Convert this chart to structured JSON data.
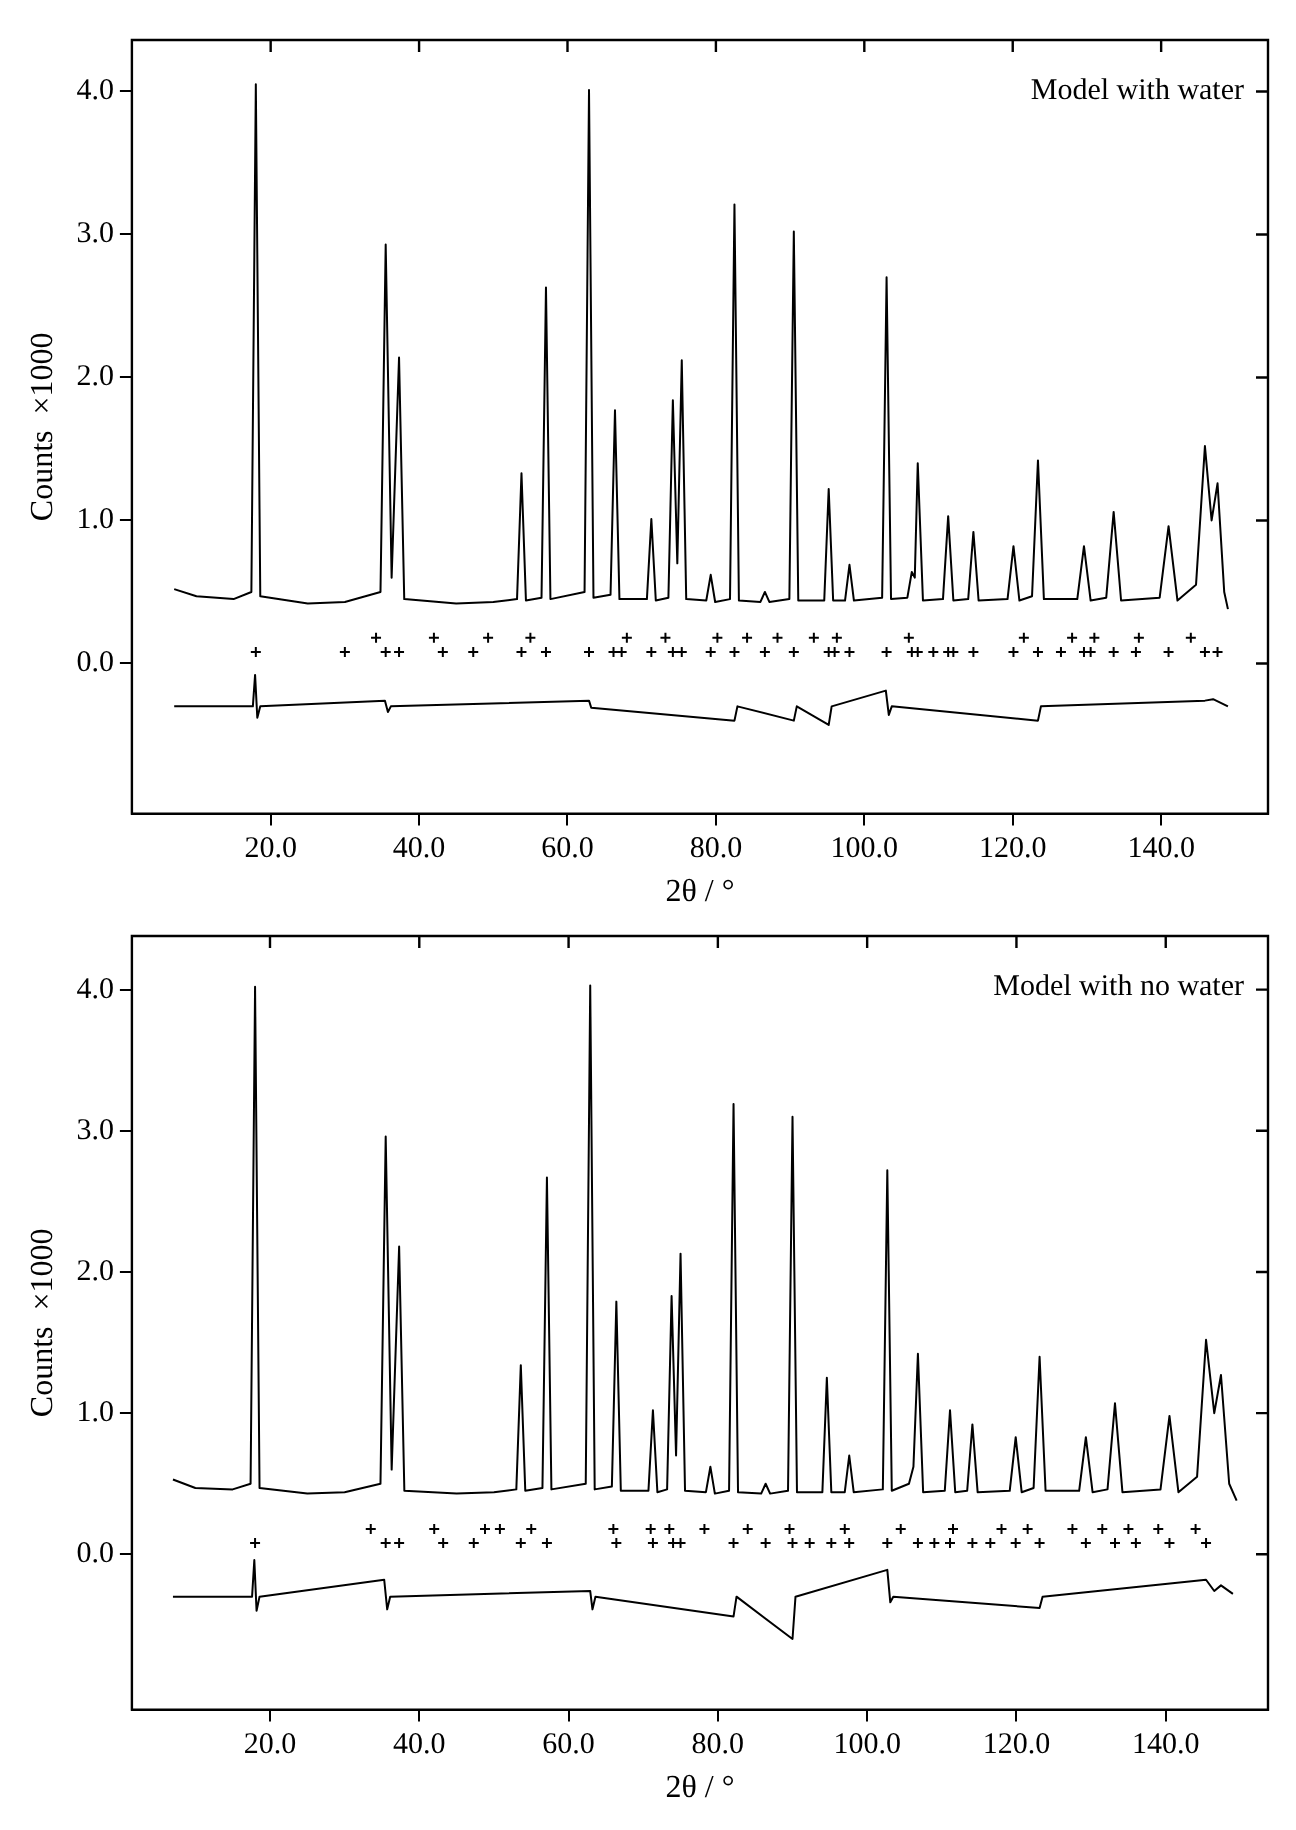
{
  "chart_data": [
    {
      "type": "line",
      "xlabel": "2θ / °",
      "ylabel": "Counts  ×1000",
      "annotations": [
        "Model with water"
      ],
      "legend": false,
      "marker": "none",
      "xlim": [
        1.3,
        154.4
      ],
      "ylim": [
        -1.05,
        4.36
      ],
      "xticks": [
        {
          "value": 20,
          "label": "20.0"
        },
        {
          "value": 40,
          "label": "40.0"
        },
        {
          "value": 60,
          "label": "60.0"
        },
        {
          "value": 80,
          "label": "80.0"
        },
        {
          "value": 100,
          "label": "100.0"
        },
        {
          "value": 120,
          "label": "120.0"
        },
        {
          "value": 140,
          "label": "140.0"
        }
      ],
      "yticks": [
        {
          "value": 0,
          "label": "0.0"
        },
        {
          "value": 1,
          "label": "1.0"
        },
        {
          "value": 2,
          "label": "2.0"
        },
        {
          "value": 3,
          "label": "3.0"
        },
        {
          "value": 4,
          "label": "4.0"
        }
      ],
      "series": [
        {
          "type": "line",
          "color": "#000000",
          "x": [
            7.0,
            10,
            15,
            17.4,
            18.0,
            18.6,
            25,
            30,
            34.8,
            35.5,
            36.3,
            37.3,
            38.0,
            45,
            50,
            53.2,
            53.8,
            54.4,
            56.5,
            57.1,
            57.7,
            62.3,
            62.9,
            63.5,
            65.8,
            66.4,
            67.0,
            70.7,
            71.3,
            71.9,
            73.6,
            74.2,
            74.8,
            75.4,
            76.0,
            78.7,
            79.3,
            79.9,
            81.9,
            82.5,
            83.1,
            86.0,
            86.6,
            87.2,
            89.9,
            90.5,
            91.1,
            94.6,
            95.2,
            95.8,
            97.4,
            98.0,
            98.6,
            102.4,
            103.0,
            103.6,
            105.8,
            106.4,
            106.8,
            107.2,
            107.9,
            110.6,
            111.3,
            112.0,
            114.0,
            114.7,
            115.4,
            119.3,
            120.1,
            120.9,
            122.6,
            123.4,
            124.2,
            128.7,
            129.6,
            130.5,
            132.6,
            133.6,
            134.6,
            139.8,
            141.0,
            142.2,
            144.7,
            145.9,
            146.8,
            147.6,
            148.5,
            149.0
          ],
          "values": [
            0.52,
            0.47,
            0.45,
            0.5,
            4.05,
            0.47,
            0.42,
            0.43,
            0.5,
            2.93,
            0.6,
            2.14,
            0.45,
            0.42,
            0.43,
            0.45,
            1.33,
            0.44,
            0.46,
            2.63,
            0.45,
            0.5,
            4.01,
            0.46,
            0.48,
            1.77,
            0.45,
            0.45,
            1.01,
            0.44,
            0.46,
            1.84,
            0.7,
            2.12,
            0.45,
            0.44,
            0.62,
            0.43,
            0.45,
            3.21,
            0.44,
            0.43,
            0.5,
            0.43,
            0.45,
            3.02,
            0.44,
            0.44,
            1.22,
            0.44,
            0.44,
            0.69,
            0.44,
            0.46,
            2.7,
            0.45,
            0.46,
            0.64,
            0.6,
            1.4,
            0.44,
            0.45,
            1.03,
            0.44,
            0.45,
            0.92,
            0.44,
            0.45,
            0.82,
            0.44,
            0.47,
            1.42,
            0.45,
            0.45,
            0.82,
            0.44,
            0.46,
            1.06,
            0.44,
            0.46,
            0.96,
            0.44,
            0.55,
            1.52,
            1.0,
            1.26,
            0.5,
            0.38
          ]
        },
        {
          "type": "scatter",
          "marker": "cross",
          "color": "#000000",
          "x": [
            18.0,
            30.0,
            35.5,
            37.3,
            43.2,
            47.3,
            53.8,
            57.1,
            62.9,
            66.2,
            67.3,
            71.3,
            74.2,
            75.4,
            79.3,
            82.5,
            86.6,
            90.5,
            95.2,
            96.0,
            98.0,
            103.0,
            106.4,
            107.2,
            109.3,
            111.3,
            112.0,
            114.7,
            120.1,
            123.4,
            126.5,
            129.6,
            130.5,
            133.6,
            136.6,
            141.0,
            145.9,
            147.6
          ],
          "values": [
            0.08,
            0.08,
            0.08,
            0.08,
            0.08,
            0.08,
            0.08,
            0.08,
            0.08,
            0.08,
            0.08,
            0.08,
            0.08,
            0.08,
            0.08,
            0.08,
            0.08,
            0.08,
            0.08,
            0.08,
            0.08,
            0.08,
            0.08,
            0.08,
            0.08,
            0.08,
            0.08,
            0.08,
            0.08,
            0.08,
            0.08,
            0.08,
            0.08,
            0.08,
            0.08,
            0.08,
            0.08,
            0.08
          ]
        },
        {
          "type": "scatter",
          "marker": "cross",
          "color": "#000000",
          "x": [
            34.2,
            42.0,
            49.3,
            55.0,
            68.0,
            73.2,
            80.2,
            84.2,
            88.3,
            93.2,
            96.3,
            106.0,
            121.5,
            128.0,
            131.0,
            137.0,
            144.0
          ],
          "values": [
            0.18,
            0.18,
            0.18,
            0.18,
            0.18,
            0.18,
            0.18,
            0.18,
            0.18,
            0.18,
            0.18,
            0.18,
            0.18,
            0.18,
            0.18,
            0.18,
            0.18
          ]
        },
        {
          "type": "line",
          "color": "#000000",
          "x": [
            7,
            17.6,
            17.9,
            18.2,
            18.6,
            35.4,
            35.8,
            36.2,
            62.9,
            63.2,
            82.5,
            82.9,
            90.5,
            90.9,
            95.2,
            95.6,
            102.9,
            103.3,
            103.7,
            123.4,
            123.8,
            145.9,
            147.0,
            149.0
          ],
          "values": [
            -0.3,
            -0.3,
            -0.08,
            -0.38,
            -0.3,
            -0.26,
            -0.34,
            -0.3,
            -0.26,
            -0.31,
            -0.4,
            -0.3,
            -0.4,
            -0.3,
            -0.43,
            -0.3,
            -0.19,
            -0.36,
            -0.3,
            -0.4,
            -0.3,
            -0.26,
            -0.25,
            -0.3
          ]
        }
      ]
    },
    {
      "type": "line",
      "xlabel": "2θ / °",
      "ylabel": "Counts  ×1000",
      "annotations": [
        "Model with no water"
      ],
      "legend": false,
      "marker": "none",
      "xlim": [
        1.5,
        153.7
      ],
      "ylim": [
        -1.1,
        4.38
      ],
      "xticks": [
        {
          "value": 20,
          "label": "20.0"
        },
        {
          "value": 40,
          "label": "40.0"
        },
        {
          "value": 60,
          "label": "60.0"
        },
        {
          "value": 80,
          "label": "80.0"
        },
        {
          "value": 100,
          "label": "100.0"
        },
        {
          "value": 120,
          "label": "120.0"
        },
        {
          "value": 140,
          "label": "140.0"
        }
      ],
      "yticks": [
        {
          "value": 0,
          "label": "0.0"
        },
        {
          "value": 1,
          "label": "1.0"
        },
        {
          "value": 2,
          "label": "2.0"
        },
        {
          "value": 3,
          "label": "3.0"
        },
        {
          "value": 4,
          "label": "4.0"
        }
      ],
      "series": [
        {
          "type": "line",
          "color": "#000000",
          "x": [
            7.0,
            10,
            15,
            17.4,
            18.0,
            18.6,
            25,
            30,
            34.8,
            35.5,
            36.3,
            37.3,
            38.0,
            45,
            50,
            53.0,
            53.6,
            54.2,
            56.5,
            57.1,
            57.7,
            62.3,
            62.9,
            63.5,
            65.8,
            66.4,
            67.0,
            70.7,
            71.3,
            71.9,
            73.2,
            73.8,
            74.4,
            75.0,
            75.6,
            78.4,
            79.0,
            79.6,
            81.5,
            82.1,
            82.7,
            85.8,
            86.4,
            87.0,
            89.4,
            90.0,
            90.6,
            94.0,
            94.6,
            95.2,
            97.0,
            97.6,
            98.2,
            102.1,
            102.7,
            103.3,
            105.6,
            106.2,
            106.8,
            107.5,
            110.4,
            111.1,
            111.8,
            113.4,
            114.1,
            114.8,
            119.1,
            119.9,
            120.7,
            122.3,
            123.1,
            123.9,
            128.4,
            129.3,
            130.2,
            132.2,
            133.2,
            134.2,
            139.3,
            140.5,
            141.7,
            144.2,
            145.4,
            146.5,
            147.4,
            148.5,
            149.5
          ],
          "values": [
            0.53,
            0.47,
            0.46,
            0.5,
            4.02,
            0.47,
            0.43,
            0.44,
            0.5,
            2.96,
            0.6,
            2.18,
            0.45,
            0.43,
            0.44,
            0.46,
            1.34,
            0.45,
            0.47,
            2.67,
            0.46,
            0.5,
            4.03,
            0.46,
            0.48,
            1.79,
            0.45,
            0.45,
            1.02,
            0.44,
            0.46,
            1.83,
            0.7,
            2.13,
            0.45,
            0.44,
            0.62,
            0.43,
            0.45,
            3.19,
            0.44,
            0.43,
            0.5,
            0.43,
            0.45,
            3.1,
            0.44,
            0.44,
            1.25,
            0.44,
            0.44,
            0.7,
            0.44,
            0.46,
            2.72,
            0.45,
            0.5,
            0.62,
            1.42,
            0.44,
            0.45,
            1.02,
            0.44,
            0.45,
            0.92,
            0.44,
            0.45,
            0.83,
            0.44,
            0.47,
            1.4,
            0.45,
            0.45,
            0.83,
            0.44,
            0.46,
            1.07,
            0.44,
            0.46,
            0.98,
            0.44,
            0.55,
            1.52,
            1.0,
            1.27,
            0.5,
            0.38
          ]
        },
        {
          "type": "scatter",
          "marker": "cross",
          "color": "#000000",
          "x": [
            18.0,
            35.5,
            37.3,
            43.2,
            47.3,
            53.6,
            57.1,
            66.4,
            71.3,
            74.0,
            75.0,
            82.1,
            86.4,
            90.0,
            92.3,
            95.2,
            97.6,
            102.7,
            106.8,
            109.0,
            111.1,
            114.1,
            116.5,
            119.9,
            123.1,
            129.3,
            133.2,
            136.0,
            140.5,
            145.4
          ],
          "values": [
            0.08,
            0.08,
            0.08,
            0.08,
            0.08,
            0.08,
            0.08,
            0.08,
            0.08,
            0.08,
            0.08,
            0.08,
            0.08,
            0.08,
            0.08,
            0.08,
            0.08,
            0.08,
            0.08,
            0.08,
            0.08,
            0.08,
            0.08,
            0.08,
            0.08,
            0.08,
            0.08,
            0.08,
            0.08,
            0.08
          ]
        },
        {
          "type": "scatter",
          "marker": "cross",
          "color": "#000000",
          "x": [
            33.5,
            42.0,
            48.8,
            50.8,
            55.0,
            66.0,
            71.0,
            73.5,
            78.2,
            84.0,
            89.6,
            97.0,
            104.5,
            111.5,
            118.0,
            121.5,
            127.5,
            131.5,
            135.0,
            139.0,
            144.0
          ],
          "values": [
            0.18,
            0.18,
            0.18,
            0.18,
            0.18,
            0.18,
            0.18,
            0.18,
            0.18,
            0.18,
            0.18,
            0.18,
            0.18,
            0.18,
            0.18,
            0.18,
            0.18,
            0.18,
            0.18,
            0.18,
            0.18
          ]
        },
        {
          "type": "line",
          "color": "#000000",
          "x": [
            7,
            17.6,
            17.9,
            18.2,
            18.6,
            35.3,
            35.7,
            36.1,
            62.9,
            63.2,
            63.6,
            82.1,
            82.5,
            90.0,
            90.4,
            102.7,
            103.1,
            103.5,
            123.1,
            123.5,
            145.4,
            146.5,
            147.4,
            149.0
          ],
          "values": [
            -0.3,
            -0.3,
            -0.04,
            -0.4,
            -0.3,
            -0.18,
            -0.39,
            -0.3,
            -0.26,
            -0.39,
            -0.3,
            -0.44,
            -0.3,
            -0.6,
            -0.3,
            -0.11,
            -0.34,
            -0.3,
            -0.38,
            -0.3,
            -0.18,
            -0.26,
            -0.22,
            -0.28
          ]
        }
      ]
    }
  ]
}
